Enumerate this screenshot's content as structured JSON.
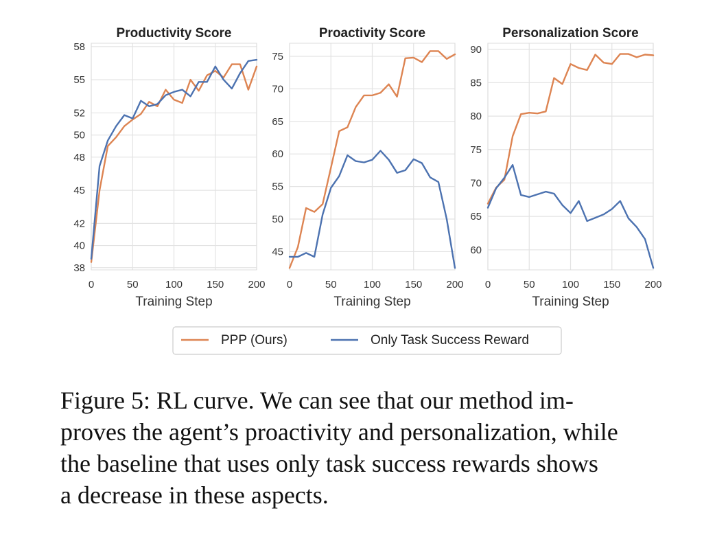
{
  "chart_data": [
    {
      "type": "line",
      "title": "Productivity Score",
      "xlabel": "Training Step",
      "ylabel": "",
      "xlim": [
        0,
        200
      ],
      "ylim": [
        37.8,
        58.3
      ],
      "xticks": [
        0,
        50,
        100,
        150,
        200
      ],
      "yticks": [
        38,
        40,
        42,
        45,
        48,
        50,
        52,
        55,
        58
      ],
      "ytick_labels": [
        "38",
        "40",
        "42",
        "45",
        "48",
        "50",
        "52",
        "55",
        "58"
      ],
      "grid": true,
      "x": [
        0,
        10,
        20,
        30,
        40,
        50,
        60,
        70,
        80,
        90,
        100,
        110,
        120,
        130,
        140,
        150,
        160,
        170,
        180,
        190,
        200
      ],
      "series": [
        {
          "name": "PPP (Ours)",
          "color": "#dd8452",
          "values": [
            38.5,
            45.0,
            49.0,
            49.8,
            50.8,
            51.4,
            51.9,
            53.0,
            52.6,
            54.1,
            53.2,
            52.9,
            55.0,
            54.0,
            55.4,
            55.8,
            55.2,
            56.4,
            56.4,
            54.1,
            56.2
          ]
        },
        {
          "name": "Only Task Success Reward",
          "color": "#4c72b0",
          "values": [
            38.8,
            47.2,
            49.5,
            50.8,
            51.8,
            51.5,
            53.1,
            52.6,
            52.8,
            53.6,
            53.9,
            54.1,
            53.5,
            54.8,
            54.8,
            56.2,
            55.0,
            54.2,
            55.6,
            56.7,
            56.8
          ]
        }
      ]
    },
    {
      "type": "line",
      "title": "Proactivity Score",
      "xlabel": "Training Step",
      "ylabel": "",
      "xlim": [
        0,
        200
      ],
      "ylim": [
        42.2,
        77.0
      ],
      "xticks": [
        0,
        50,
        100,
        150,
        200
      ],
      "yticks": [
        45,
        50,
        55,
        60,
        65,
        70,
        75
      ],
      "ytick_labels": [
        "45",
        "50",
        "55",
        "60",
        "65",
        "70",
        "75"
      ],
      "grid": true,
      "x": [
        0,
        10,
        20,
        30,
        40,
        50,
        60,
        70,
        80,
        90,
        100,
        110,
        120,
        130,
        140,
        150,
        160,
        170,
        180,
        190,
        200
      ],
      "series": [
        {
          "name": "PPP (Ours)",
          "color": "#dd8452",
          "values": [
            42.5,
            45.7,
            51.7,
            51.1,
            52.3,
            57.9,
            63.5,
            64.1,
            67.2,
            69.0,
            69.0,
            69.4,
            70.7,
            68.8,
            74.7,
            74.8,
            74.1,
            75.8,
            75.8,
            74.6,
            75.3
          ]
        },
        {
          "name": "Only Task Success Reward",
          "color": "#4c72b0",
          "values": [
            44.2,
            44.2,
            44.8,
            44.2,
            50.7,
            54.8,
            56.6,
            59.8,
            58.9,
            58.7,
            59.1,
            60.5,
            59.1,
            57.1,
            57.5,
            59.2,
            58.6,
            56.4,
            55.7,
            50.0,
            42.5
          ]
        }
      ]
    },
    {
      "type": "line",
      "title": "Personalization Score",
      "xlabel": "Training Step",
      "ylabel": "",
      "xlim": [
        0,
        200
      ],
      "ylim": [
        57.0,
        90.9
      ],
      "xticks": [
        0,
        50,
        100,
        150,
        200
      ],
      "yticks": [
        60,
        65,
        70,
        75,
        80,
        85,
        90
      ],
      "ytick_labels": [
        "60",
        "65",
        "70",
        "75",
        "80",
        "85",
        "90"
      ],
      "grid": true,
      "x": [
        0,
        10,
        20,
        30,
        40,
        50,
        60,
        70,
        80,
        90,
        100,
        110,
        120,
        130,
        140,
        150,
        160,
        170,
        180,
        190,
        200
      ],
      "series": [
        {
          "name": "PPP (Ours)",
          "color": "#dd8452",
          "values": [
            66.9,
            69.3,
            70.5,
            77.0,
            80.3,
            80.5,
            80.4,
            80.7,
            85.7,
            84.8,
            87.8,
            87.2,
            86.9,
            89.2,
            88.0,
            87.8,
            89.3,
            89.3,
            88.8,
            89.2,
            89.1
          ]
        },
        {
          "name": "Only Task Success Reward",
          "color": "#4c72b0",
          "values": [
            66.3,
            69.2,
            70.8,
            72.7,
            68.2,
            67.9,
            68.3,
            68.7,
            68.4,
            66.7,
            65.5,
            67.3,
            64.3,
            64.8,
            65.3,
            66.1,
            67.3,
            64.7,
            63.4,
            61.6,
            57.3
          ]
        }
      ]
    }
  ],
  "legend": {
    "entries": [
      {
        "label": "PPP (Ours)",
        "color": "#dd8452"
      },
      {
        "label": "Only Task Success Reward",
        "color": "#4c72b0"
      }
    ]
  },
  "caption": {
    "lines": [
      "Figure 5: RL curve.  We can see that our method im-",
      "proves the agent’s proactivity and personalization, while",
      "the baseline that uses only task success rewards shows",
      "a decrease in these aspects."
    ]
  }
}
